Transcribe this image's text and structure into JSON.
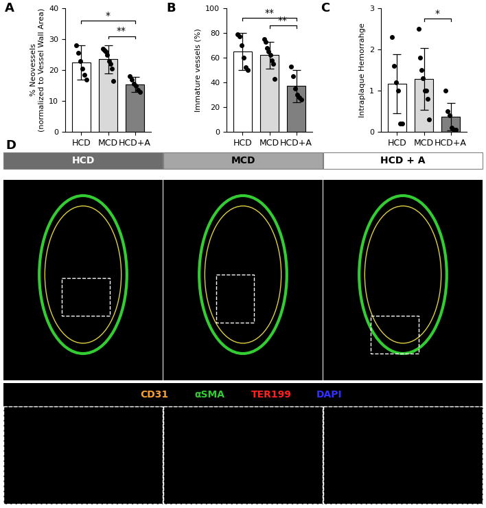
{
  "chart_data": [
    {
      "type": "bar",
      "panel": "A",
      "ylabel": "% Neovessels\n(normalized to Vessel Wall Area)",
      "categories": [
        "HCD",
        "MCD",
        "HCD+A"
      ],
      "values": [
        22.5,
        23.5,
        15.3
      ],
      "error": [
        5.5,
        4.5,
        2.5
      ],
      "points": [
        [
          28,
          25.5,
          23,
          20.5,
          18.5,
          17
        ],
        [
          27,
          26.5,
          26,
          25,
          23,
          22,
          20.5,
          16.5
        ],
        [
          18,
          17,
          15.5,
          15,
          13.5,
          13
        ]
      ],
      "colors": [
        "#ffffff",
        "#d9d9d9",
        "#808080"
      ],
      "ylim": [
        0,
        40
      ],
      "yticks": [
        0,
        10,
        20,
        30,
        40
      ],
      "annotations": [
        {
          "from": "HCD",
          "to": "HCD+A",
          "y": 36,
          "label": "*"
        },
        {
          "from": "MCD",
          "to": "HCD+A",
          "y": 31,
          "label": "**"
        }
      ]
    },
    {
      "type": "bar",
      "panel": "B",
      "ylabel": "Immature vessels (%)",
      "categories": [
        "HCD",
        "MCD",
        "HCD+A"
      ],
      "values": [
        65,
        62,
        37
      ],
      "error": [
        15,
        11,
        13
      ],
      "points": [
        [
          79,
          77,
          70,
          60,
          52,
          50
        ],
        [
          75,
          73,
          68,
          65,
          62,
          58,
          55,
          43
        ],
        [
          53,
          45,
          35,
          30,
          28,
          26
        ]
      ],
      "colors": [
        "#ffffff",
        "#d9d9d9",
        "#808080"
      ],
      "ylim": [
        0,
        100
      ],
      "yticks": [
        0,
        20,
        40,
        60,
        80,
        100
      ],
      "annotations": [
        {
          "from": "HCD",
          "to": "HCD+A",
          "y": 92,
          "label": "**"
        },
        {
          "from": "MCD",
          "to": "HCD+A",
          "y": 86,
          "label": "**"
        }
      ]
    },
    {
      "type": "bar",
      "panel": "C",
      "ylabel": "Intraplaque Hemorrahge",
      "categories": [
        "HCD",
        "MCD",
        "HCD+A"
      ],
      "values": [
        1.17,
        1.28,
        0.37
      ],
      "error": [
        0.72,
        0.75,
        0.33
      ],
      "points": [
        [
          2.3,
          1.6,
          1.2,
          1.0,
          0.2,
          0.2
        ],
        [
          2.5,
          1.8,
          1.5,
          1.3,
          1.0,
          1.0,
          0.8,
          0.3
        ],
        [
          1.0,
          0.5,
          0.4,
          0.1,
          0.05,
          0.05
        ]
      ],
      "colors": [
        "#ffffff",
        "#d9d9d9",
        "#808080"
      ],
      "ylim": [
        0,
        3
      ],
      "yticks": [
        0,
        1,
        2,
        3
      ],
      "annotations": [
        {
          "from": "MCD",
          "to": "HCD+A",
          "y": 2.75,
          "label": "*"
        }
      ]
    }
  ],
  "panel_d": {
    "panel": "D",
    "groups": [
      {
        "name": "HCD",
        "color": "#6d6d6d"
      },
      {
        "name": "MCD",
        "color": "#a6a6a6"
      },
      {
        "name": "HCD + A",
        "color": "#ffffff"
      }
    ],
    "stains": [
      {
        "name": "CD31",
        "color": "#f5a030"
      },
      {
        "name": "αSMA",
        "color": "#33cc33"
      },
      {
        "name": "TER199",
        "color": "#ff2020"
      },
      {
        "name": "DAPI",
        "color": "#3030ff"
      }
    ]
  }
}
